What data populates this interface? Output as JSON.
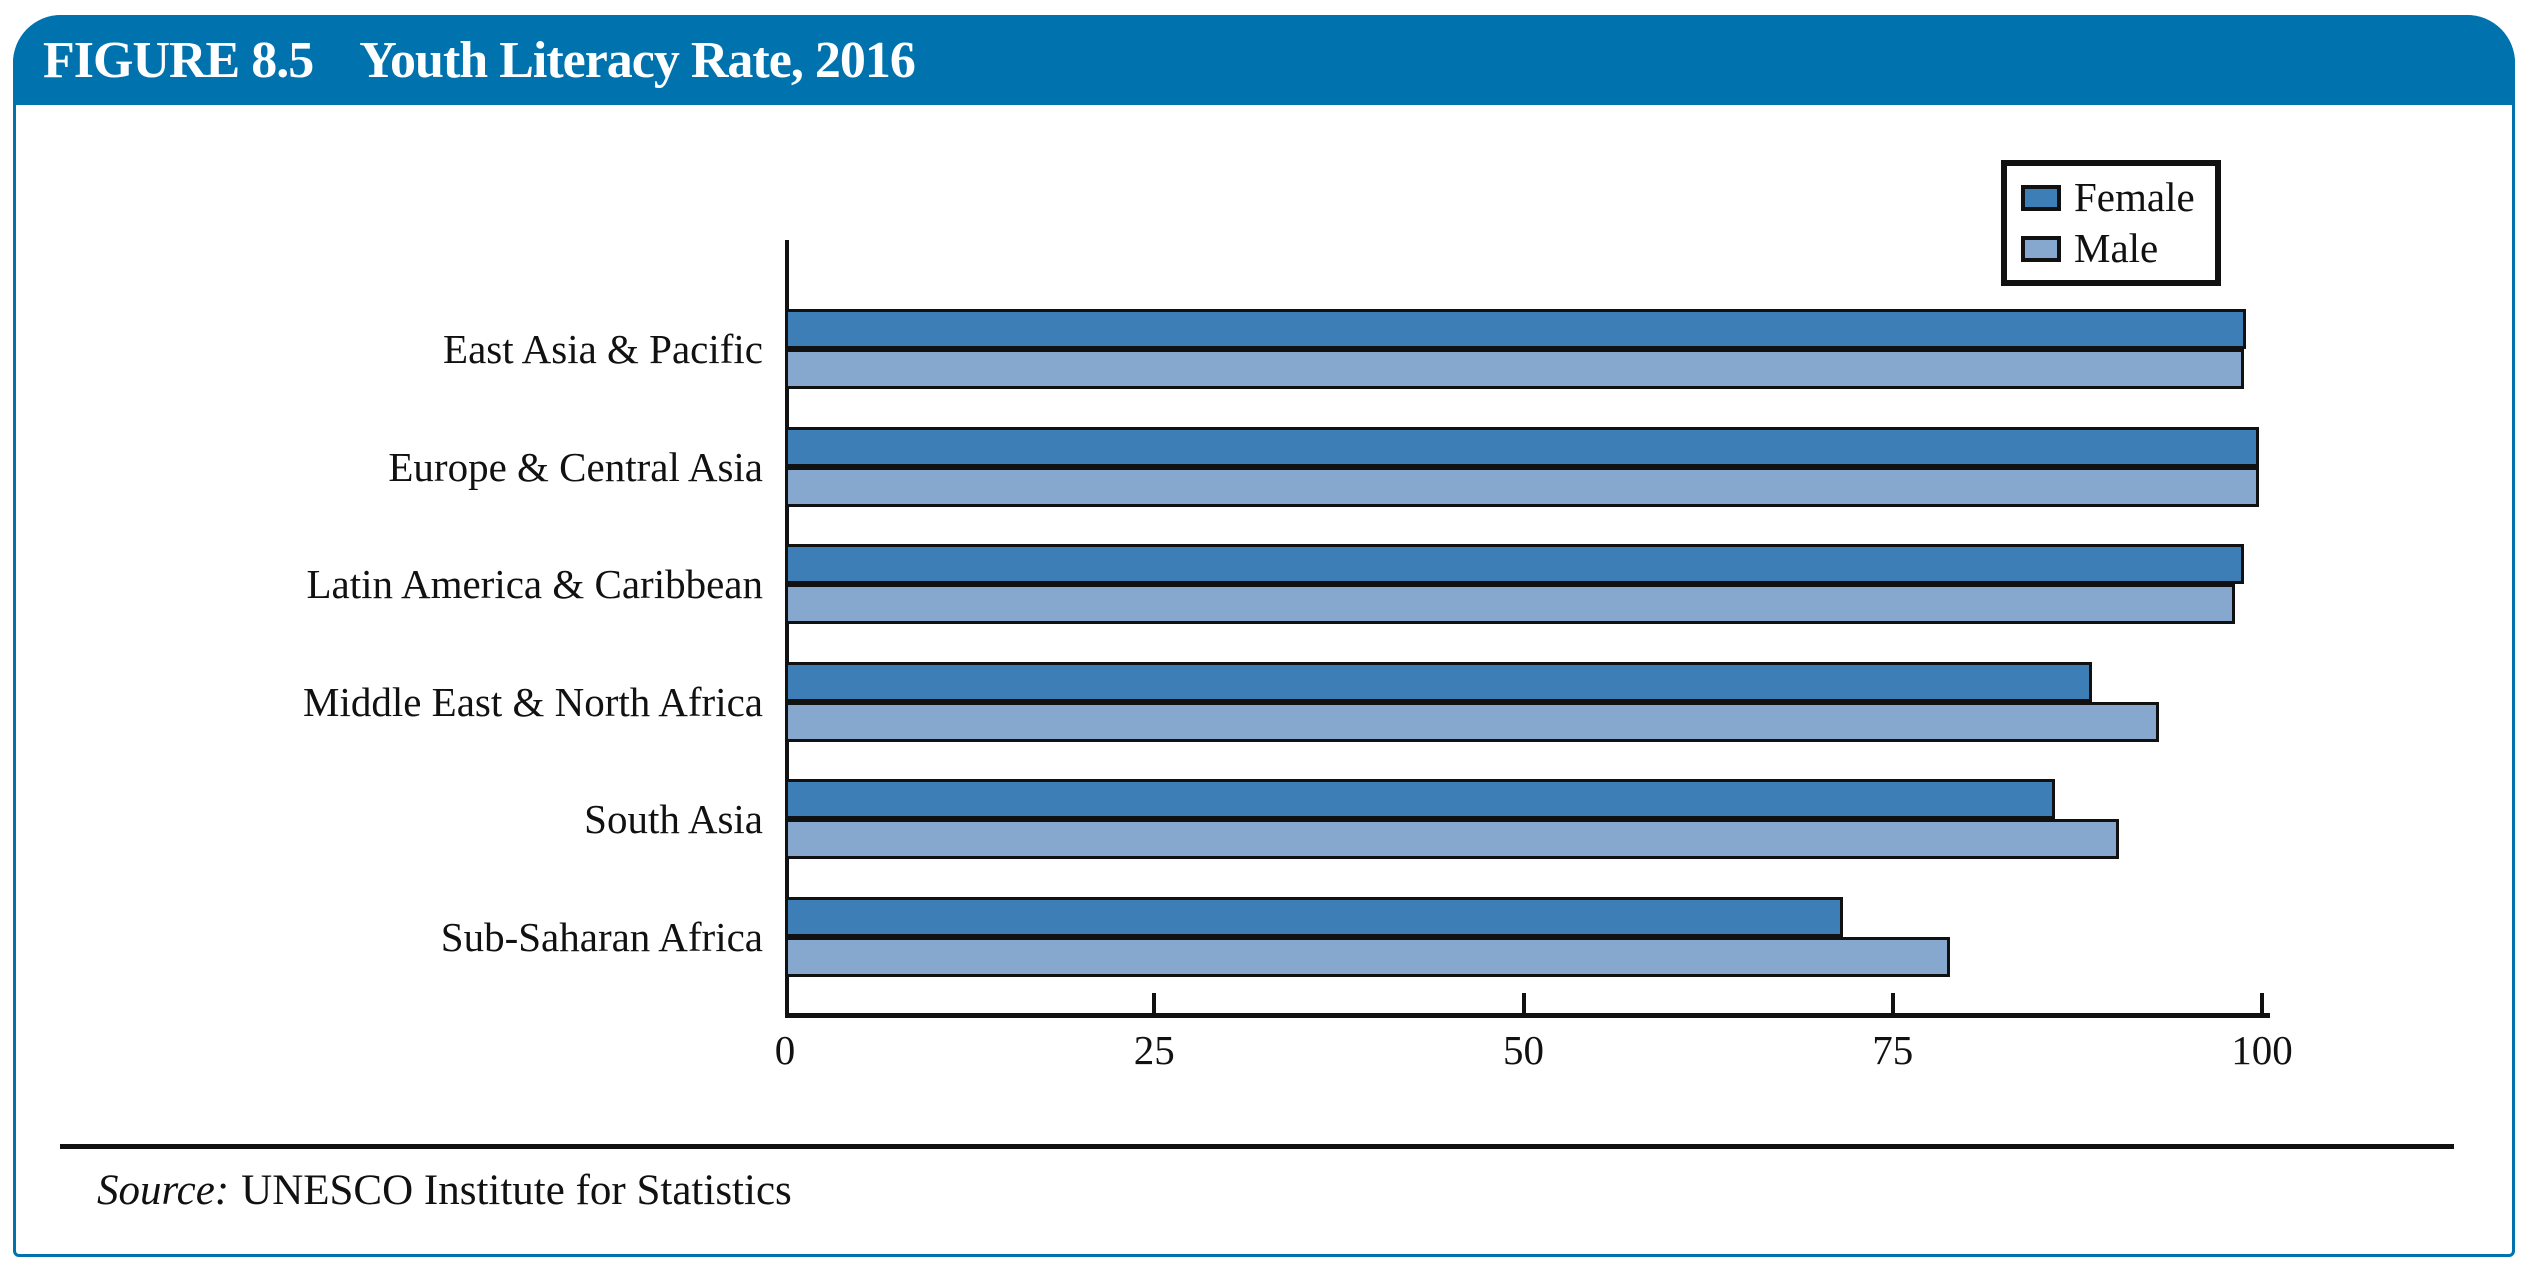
{
  "figure": {
    "label": "FIGURE 8.5",
    "title": "Youth Literacy Rate, 2016",
    "source_prefix": "Source:",
    "source_text": "UNESCO Institute for Statistics"
  },
  "colors": {
    "header_blue": "#0073AF",
    "frame_blue": "#0073AF",
    "female_bar": "#3D7EB6",
    "male_bar": "#87A8CE",
    "bar_border": "#111111",
    "axis_black": "#111111"
  },
  "legend": {
    "items": [
      {
        "label": "Female"
      },
      {
        "label": "Male"
      }
    ]
  },
  "chart_data": {
    "type": "bar",
    "orientation": "horizontal",
    "title": "Youth Literacy Rate, 2016",
    "categories": [
      "East Asia & Pacific",
      "Europe & Central Asia",
      "Latin America & Caribbean",
      "Middle East & North Africa",
      "South Asia",
      "Sub-Saharan Africa"
    ],
    "series": [
      {
        "name": "Female",
        "color": "#3D7EB6",
        "values": [
          98.9,
          99.8,
          98.8,
          88.5,
          86.0,
          71.6
        ]
      },
      {
        "name": "Male",
        "color": "#87A8CE",
        "values": [
          98.8,
          99.8,
          98.2,
          93.0,
          90.3,
          78.9
        ]
      }
    ],
    "xlabel": "",
    "ylabel": "",
    "xlim": [
      0,
      100
    ],
    "x_ticks": [
      0,
      25,
      50,
      75,
      100
    ],
    "grid": false,
    "legend_position": "top-right"
  }
}
